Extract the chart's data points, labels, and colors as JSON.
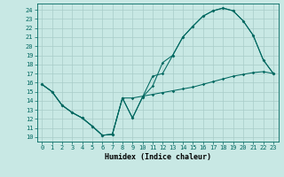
{
  "xlabel": "Humidex (Indice chaleur)",
  "bg_color": "#c8e8e4",
  "grid_color": "#a8ccc8",
  "line_color": "#006860",
  "xlim": [
    -0.5,
    23.5
  ],
  "ylim": [
    9.5,
    24.7
  ],
  "xticks": [
    0,
    1,
    2,
    3,
    4,
    5,
    6,
    7,
    8,
    9,
    10,
    11,
    12,
    13,
    14,
    15,
    16,
    17,
    18,
    19,
    20,
    21,
    22,
    23
  ],
  "yticks": [
    10,
    11,
    12,
    13,
    14,
    15,
    16,
    17,
    18,
    19,
    20,
    21,
    22,
    23,
    24
  ],
  "line_zigzag": {
    "x": [
      0,
      1,
      2,
      3,
      4,
      5,
      6,
      7,
      8,
      9,
      10,
      11,
      12,
      13,
      14,
      15,
      16,
      17,
      18,
      19,
      20,
      21,
      22,
      23
    ],
    "y": [
      15.8,
      15.0,
      13.5,
      12.7,
      12.1,
      11.2,
      10.2,
      10.3,
      14.3,
      12.1,
      14.4,
      16.7,
      17.0,
      19.0,
      21.0,
      22.2,
      23.3,
      23.9,
      24.2,
      23.9,
      22.8,
      21.2,
      18.5,
      17.0
    ]
  },
  "line_upper": {
    "x": [
      0,
      1,
      2,
      3,
      4,
      5,
      6,
      7,
      8,
      9,
      10,
      11,
      12,
      13,
      14,
      15,
      16,
      17,
      18,
      19,
      20,
      21,
      22,
      23
    ],
    "y": [
      15.8,
      15.0,
      13.5,
      12.7,
      12.1,
      11.2,
      10.2,
      10.3,
      14.3,
      12.1,
      14.4,
      15.6,
      18.2,
      19.0,
      21.0,
      22.2,
      23.3,
      23.9,
      24.2,
      23.9,
      22.8,
      21.2,
      18.5,
      17.0
    ]
  },
  "line_flat": {
    "x": [
      0,
      1,
      2,
      3,
      4,
      5,
      6,
      7,
      8,
      9,
      10,
      11,
      12,
      13,
      14,
      15,
      16,
      17,
      18,
      19,
      20,
      21,
      22,
      23
    ],
    "y": [
      15.8,
      15.0,
      13.5,
      12.7,
      12.1,
      11.2,
      10.2,
      10.3,
      14.3,
      14.3,
      14.5,
      14.7,
      14.9,
      15.1,
      15.3,
      15.5,
      15.8,
      16.1,
      16.4,
      16.7,
      16.9,
      17.1,
      17.2,
      17.0
    ]
  }
}
